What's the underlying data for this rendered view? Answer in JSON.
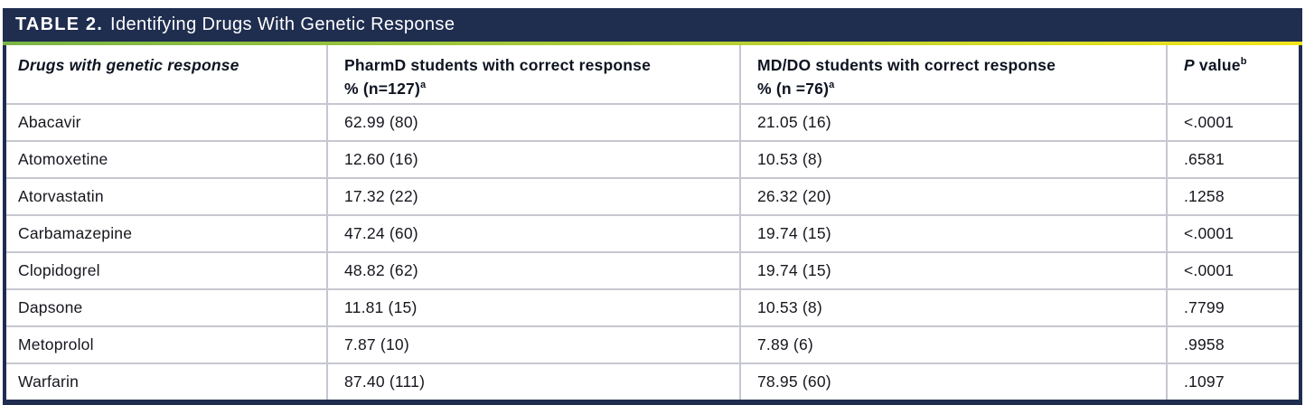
{
  "title": {
    "label": "TABLE 2.",
    "text": "Identifying Drugs With Genetic Response"
  },
  "colors": {
    "header_bar_navy": "#1f2d4f",
    "accent_green": "#79b544",
    "accent_yellow": "#f2e51c",
    "grid_line_gray": "#c6c7d0",
    "body_text": "#16161e",
    "title_text": "#ffffff"
  },
  "table": {
    "columns": [
      {
        "line1": "Drugs with genetic response",
        "line2": "",
        "sup": ""
      },
      {
        "line1": "PharmD students with correct response",
        "line2": "% (n=127)",
        "sup": "a"
      },
      {
        "line1": "MD/DO students with correct response",
        "line2": "% (n =76)",
        "sup": "a"
      },
      {
        "italic": "P",
        "rest": " value",
        "sup": "b"
      }
    ],
    "rows": [
      [
        "Abacavir",
        "62.99 (80)",
        "21.05 (16)",
        "<.0001"
      ],
      [
        "Atomoxetine",
        "12.60 (16)",
        "10.53 (8)",
        ".6581"
      ],
      [
        "Atorvastatin",
        "17.32 (22)",
        "26.32 (20)",
        ".1258"
      ],
      [
        "Carbamazepine",
        "47.24 (60)",
        "19.74 (15)",
        "<.0001"
      ],
      [
        "Clopidogrel",
        "48.82 (62)",
        "19.74 (15)",
        "<.0001"
      ],
      [
        "Dapsone",
        "11.81 (15)",
        "10.53 (8)",
        ".7799"
      ],
      [
        "Metoprolol",
        "7.87 (10)",
        "7.89 (6)",
        ".9958"
      ],
      [
        "Warfarin",
        "87.40 (111)",
        "78.95 (60)",
        ".1097"
      ]
    ]
  },
  "chart_data": {
    "type": "table",
    "title": "TABLE 2. Identifying Drugs With Genetic Response",
    "columns": [
      "Drugs with genetic response",
      "PharmD students with correct response % (n=127)a",
      "MD/DO students with correct response % (n =76)a",
      "P valueb"
    ],
    "rows": [
      [
        "Abacavir",
        "62.99 (80)",
        "21.05 (16)",
        "<.0001"
      ],
      [
        "Atomoxetine",
        "12.60 (16)",
        "10.53 (8)",
        ".6581"
      ],
      [
        "Atorvastatin",
        "17.32 (22)",
        "26.32 (20)",
        ".1258"
      ],
      [
        "Carbamazepine",
        "47.24 (60)",
        "19.74 (15)",
        "<.0001"
      ],
      [
        "Clopidogrel",
        "48.82 (62)",
        "19.74 (15)",
        "<.0001"
      ],
      [
        "Dapsone",
        "11.81 (15)",
        "10.53 (8)",
        ".7799"
      ],
      [
        "Metoprolol",
        "7.87 (10)",
        "7.89 (6)",
        ".9958"
      ],
      [
        "Warfarin",
        "87.40 (111)",
        "78.95 (60)",
        ".1097"
      ]
    ]
  }
}
